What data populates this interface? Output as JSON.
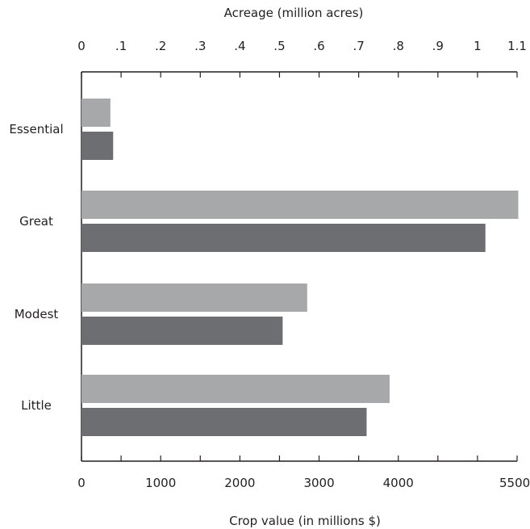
{
  "chart_data": {
    "type": "bar",
    "orientation": "horizontal",
    "categories": [
      "Essential",
      "Great",
      "Modest",
      "Little"
    ],
    "series": [
      {
        "axis": "top",
        "color": "#a7a8aa",
        "values": [
          0.073,
          1.103,
          0.57,
          0.778
        ]
      },
      {
        "axis": "bottom",
        "color": "#6d6e71",
        "values": [
          400,
          5100,
          2540,
          3600
        ]
      }
    ],
    "top_axis": {
      "title": "Acreage (million acres)",
      "range": [
        0,
        1.1
      ],
      "ticks": [
        0,
        0.1,
        0.2,
        0.3,
        0.4,
        0.5,
        0.6,
        0.7,
        0.8,
        0.9,
        1.0,
        1.1
      ],
      "tick_labels": [
        "0",
        ".1",
        ".2",
        ".3",
        ".4",
        ".5",
        ".6",
        ".7",
        ".8",
        ".9",
        "1",
        "1.1"
      ]
    },
    "bottom_axis": {
      "title": "Crop value (in millions $)",
      "range": [
        0,
        5500
      ],
      "ticks": [
        0,
        500,
        1000,
        1500,
        2000,
        2500,
        3000,
        3500,
        4000,
        4500,
        5000,
        5500
      ],
      "labeled_ticks": [
        0,
        1000,
        2000,
        3000,
        4000,
        5500
      ],
      "tick_labels": [
        "0",
        "1000",
        "2000",
        "3000",
        "4000",
        "5500"
      ]
    },
    "grid": false,
    "legend": "none"
  },
  "colors": {
    "light_bar": "#a7a8aa",
    "dark_bar": "#6d6e71",
    "axis": "#231f20"
  }
}
